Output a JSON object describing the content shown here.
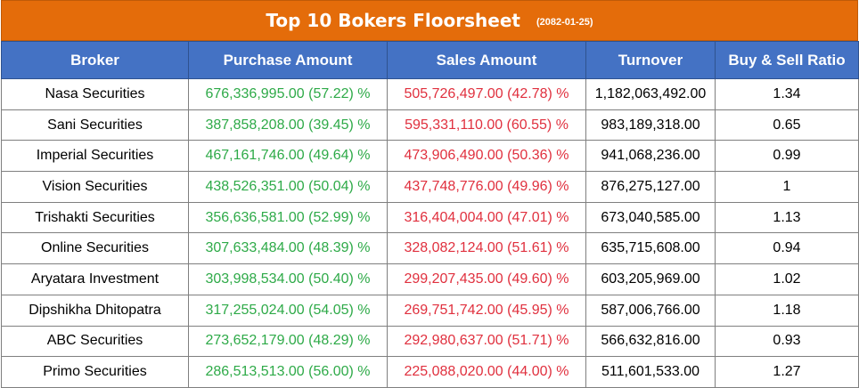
{
  "title": "Top 10 Bokers Floorsheet",
  "date": "(2082-01-25)",
  "colors": {
    "title_bg": "#e46c0a",
    "header_bg": "#4472c4",
    "buy": "#2eaa48",
    "sell": "#e0303e"
  },
  "columns": [
    "Broker",
    "Purchase Amount",
    "Sales Amount",
    "Turnover",
    "Buy & Sell Ratio"
  ],
  "rows": [
    {
      "broker": "Nasa Securities",
      "purchase": "676,336,995.00 (57.22) %",
      "sales": "505,726,497.00 (42.78) %",
      "turnover": "1,182,063,492.00",
      "ratio": "1.34"
    },
    {
      "broker": "Sani Securities",
      "purchase": "387,858,208.00 (39.45) %",
      "sales": "595,331,110.00 (60.55) %",
      "turnover": "983,189,318.00",
      "ratio": "0.65"
    },
    {
      "broker": "Imperial Securities",
      "purchase": "467,161,746.00 (49.64) %",
      "sales": "473,906,490.00 (50.36) %",
      "turnover": "941,068,236.00",
      "ratio": "0.99"
    },
    {
      "broker": "Vision Securities",
      "purchase": "438,526,351.00 (50.04) %",
      "sales": "437,748,776.00 (49.96) %",
      "turnover": "876,275,127.00",
      "ratio": "1"
    },
    {
      "broker": "Trishakti Securities",
      "purchase": "356,636,581.00 (52.99) %",
      "sales": "316,404,004.00 (47.01) %",
      "turnover": "673,040,585.00",
      "ratio": "1.13"
    },
    {
      "broker": "Online Securities",
      "purchase": "307,633,484.00 (48.39) %",
      "sales": "328,082,124.00 (51.61) %",
      "turnover": "635,715,608.00",
      "ratio": "0.94"
    },
    {
      "broker": "Aryatara Investment",
      "purchase": "303,998,534.00 (50.40) %",
      "sales": "299,207,435.00 (49.60) %",
      "turnover": "603,205,969.00",
      "ratio": "1.02"
    },
    {
      "broker": "Dipshikha Dhitopatra",
      "purchase": "317,255,024.00 (54.05) %",
      "sales": "269,751,742.00 (45.95) %",
      "turnover": "587,006,766.00",
      "ratio": "1.18"
    },
    {
      "broker": "ABC Securities",
      "purchase": "273,652,179.00 (48.29) %",
      "sales": "292,980,637.00 (51.71) %",
      "turnover": "566,632,816.00",
      "ratio": "0.93"
    },
    {
      "broker": "Primo Securities",
      "purchase": "286,513,513.00 (56.00) %",
      "sales": "225,088,020.00 (44.00) %",
      "turnover": "511,601,533.00",
      "ratio": "1.27"
    }
  ]
}
